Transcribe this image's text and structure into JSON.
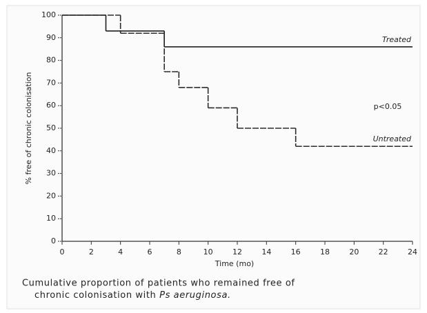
{
  "chart_data": {
    "type": "line",
    "step": "post",
    "xlabel": "Time (mo)",
    "ylabel": "% free of chronic colonisation",
    "x": null,
    "series": [
      {
        "name": "Treated",
        "color": "#1e1e1e",
        "dash": false,
        "x": [
          0,
          3,
          7
        ],
        "values": [
          100,
          93,
          86
        ]
      },
      {
        "name": "Untreated",
        "color": "#2a2a2a",
        "dash": true,
        "x": [
          0,
          4,
          7,
          8,
          10,
          12,
          16
        ],
        "values": [
          100,
          92,
          75,
          68,
          59,
          50,
          42
        ]
      }
    ],
    "annotation": "p<0.05",
    "xlim": [
      0,
      24
    ],
    "xticks": [
      0,
      2,
      4,
      6,
      8,
      10,
      12,
      14,
      16,
      18,
      20,
      22,
      24
    ],
    "ylim": [
      0,
      100
    ],
    "yticks": [
      0,
      10,
      20,
      30,
      40,
      50,
      60,
      70,
      80,
      90,
      100
    ],
    "caption": [
      "Cumulative proportion of patients who remained free of",
      "chronic colonisation with",
      "Ps aeruginosa."
    ]
  }
}
